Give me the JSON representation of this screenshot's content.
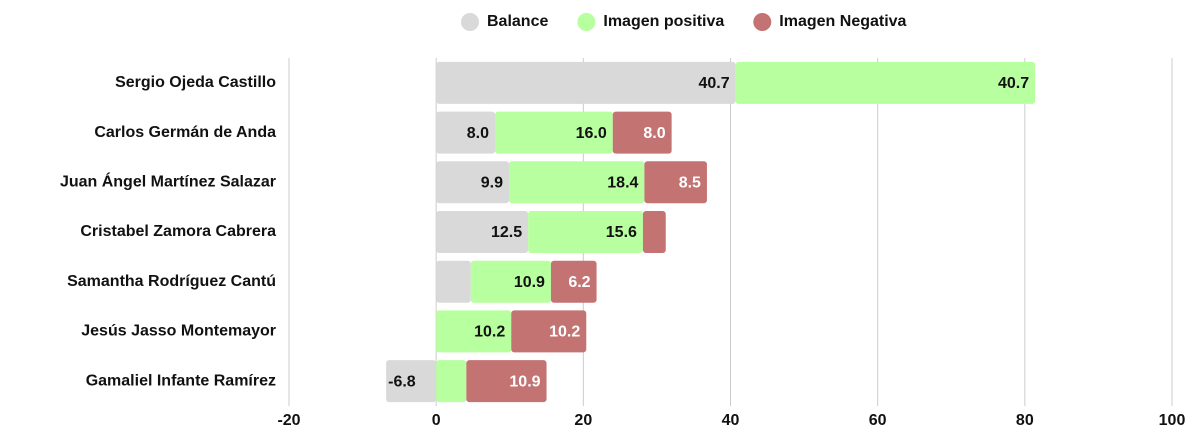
{
  "chart_data": {
    "type": "stacked-bar-horizontal",
    "categories": [
      "Sergio Ojeda Castillo",
      "Carlos Germán de Anda",
      "Juan Ángel Martínez Salazar",
      "Cristabel Zamora Cabrera",
      "Samantha Rodríguez Cantú",
      "Jesús Jasso Montemayor",
      "Gamaliel Infante Ramírez"
    ],
    "series": [
      {
        "name": "Balance",
        "color": "#d9d9d9",
        "label_color": "#111111",
        "values": [
          40.7,
          8.0,
          9.9,
          12.5,
          4.7,
          0,
          -6.8
        ],
        "value_labels": [
          "40.7",
          "8.0",
          "9.9",
          "12.5",
          null,
          null,
          "-6.8"
        ]
      },
      {
        "name": "Imagen positiva",
        "color": "#b7ff9f",
        "label_color": "#111111",
        "values": [
          40.7,
          16.0,
          18.4,
          15.6,
          10.9,
          10.2,
          4.1
        ],
        "value_labels": [
          "40.7",
          "16.0",
          "18.4",
          "15.6",
          "10.9",
          "10.2",
          null
        ]
      },
      {
        "name": "Imagen Negativa",
        "color": "#c47373",
        "label_color": "#ffffff",
        "values": [
          0,
          8.0,
          8.5,
          3.1,
          6.2,
          10.2,
          10.9
        ],
        "value_labels": [
          null,
          "8.0",
          "8.5",
          null,
          "6.2",
          "10.2",
          "10.9"
        ]
      }
    ],
    "xlim": [
      -20,
      100
    ],
    "xticks": [
      -20,
      0,
      20,
      40,
      60,
      80,
      100
    ],
    "grid": true,
    "legend": "top"
  }
}
